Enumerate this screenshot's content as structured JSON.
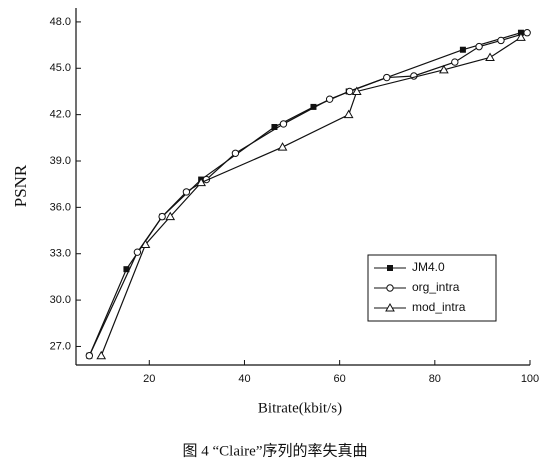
{
  "chart_data": {
    "type": "line",
    "x_label": "Bitrate(kbit/s)",
    "y_label": "PSNR",
    "caption": "图 4 “Claire”序列的率失真曲",
    "xlim": [
      4.6,
      100
    ],
    "xticks": [
      20,
      40,
      60,
      80,
      100
    ],
    "ylim": [
      25.8,
      48.9
    ],
    "yticks": [
      {
        "value": 27,
        "label": "27.0"
      },
      {
        "value": 30,
        "label": "30.0"
      },
      {
        "value": 33,
        "label": "33.0"
      },
      {
        "value": 36,
        "label": "36.0"
      },
      {
        "value": 39,
        "label": "39.0"
      },
      {
        "value": 42,
        "label": "42.0"
      },
      {
        "value": 45,
        "label": "45.0"
      },
      {
        "value": 48,
        "label": "48.0"
      }
    ],
    "legend": "lower right",
    "series": [
      {
        "name": "JM4.0",
        "color": "#111111",
        "marker": "filled-square",
        "x": [
          7.4,
          15.2,
          22.7,
          30.9,
          46.3,
          54.5,
          61.9,
          85.9,
          98.1
        ],
        "values": [
          26.4,
          32.0,
          35.4,
          37.8,
          41.2,
          42.5,
          43.5,
          46.2,
          47.3
        ]
      },
      {
        "name": "org_intra",
        "color": "#111111",
        "marker": "open-circle",
        "x": [
          7.4,
          17.5,
          22.7,
          27.8,
          32.0,
          38.1,
          48.2,
          57.9,
          62.1,
          69.9,
          75.6,
          84.2,
          89.3,
          93.9,
          99.4
        ],
        "values": [
          26.4,
          33.1,
          35.4,
          37.0,
          37.8,
          39.5,
          41.4,
          43.0,
          43.5,
          44.4,
          44.5,
          45.4,
          46.4,
          46.8,
          47.3
        ]
      },
      {
        "name": "mod_intra",
        "color": "#111111",
        "marker": "open-triangle",
        "x": [
          9.9,
          19.2,
          24.4,
          30.9,
          48.0,
          61.9,
          63.6,
          81.9,
          91.6,
          98.1
        ],
        "values": [
          26.4,
          33.6,
          35.4,
          37.6,
          39.9,
          42.0,
          43.5,
          44.9,
          45.7,
          47.0
        ]
      }
    ]
  }
}
